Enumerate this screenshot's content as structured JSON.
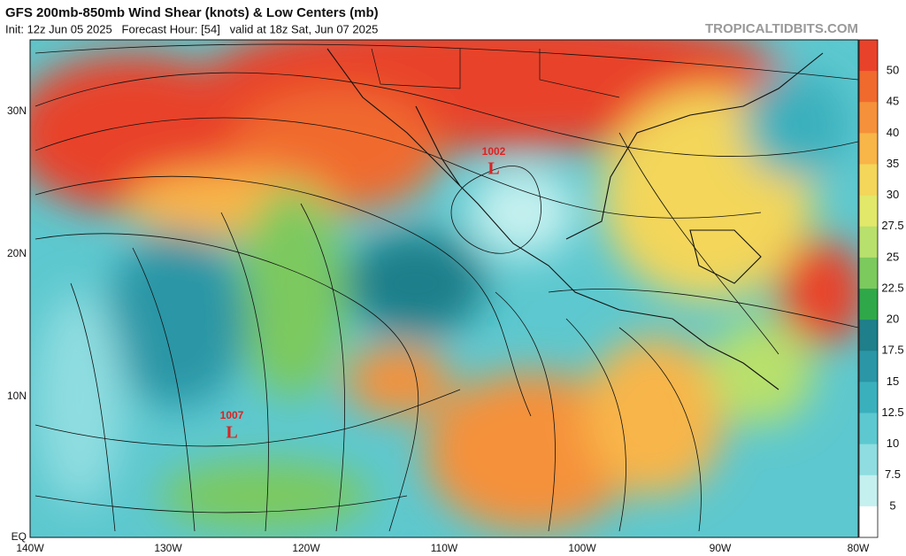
{
  "header": {
    "title": "GFS 200mb-850mb Wind Shear (knots) & Low Centers (mb)",
    "subtitle": "Init: 12z Jun 05 2025   Forecast Hour: [54]   valid at 18z Sat, Jun 07 2025",
    "brand": "TROPICALTIDBITS.COM"
  },
  "map": {
    "lat_labels": [
      "30N",
      "20N",
      "10N",
      "EQ"
    ],
    "lon_labels": [
      "140W",
      "130W",
      "120W",
      "110W",
      "100W",
      "90W",
      "80W"
    ],
    "lows": [
      {
        "pressure": "1002",
        "symbol": "L"
      },
      {
        "pressure": "1007",
        "symbol": "L"
      }
    ]
  },
  "colorbar": {
    "labels": [
      "50",
      "45",
      "40",
      "35",
      "30",
      "27.5",
      "25",
      "22.5",
      "20",
      "17.5",
      "15",
      "12.5",
      "10",
      "7.5",
      "5"
    ],
    "colors": [
      "#e8432a",
      "#f06a2e",
      "#f5913a",
      "#f8b548",
      "#f3d65a",
      "#e2e86a",
      "#b8e06c",
      "#7cc95e",
      "#2fa84a",
      "#1f7f8a",
      "#2a96a6",
      "#3bb0bd",
      "#5dc8cf",
      "#8fdde0",
      "#c4f0ef",
      "#ffffff"
    ]
  }
}
